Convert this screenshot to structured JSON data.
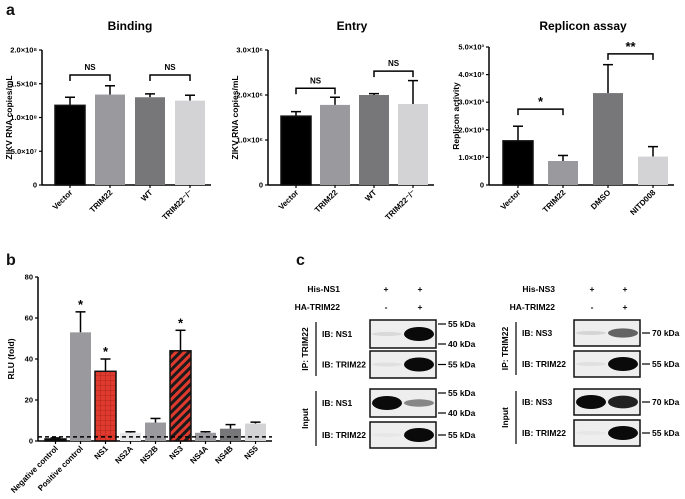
{
  "panels": {
    "a": "a",
    "b": "b",
    "c": "c"
  },
  "chart_data": [
    {
      "type": "bar",
      "title": "Binding",
      "ylabel": "ZIKV RNA copies/mL",
      "categories": [
        "Vector",
        "TRIM22",
        "WT",
        "TRIM22⁻/⁻"
      ],
      "values": [
        118000000,
        134000000,
        130000000,
        125000000
      ],
      "errors": [
        12000000,
        13000000,
        5000000,
        8000000
      ],
      "colors": [
        "#000000",
        "#9a9a9e",
        "#777779",
        "#d3d3d5"
      ],
      "ylim": [
        0,
        200000000
      ],
      "yticks": [
        0,
        50000000,
        100000000,
        150000000,
        200000000
      ],
      "yticklabels": [
        "0",
        "5.0×10⁷",
        "1.0×10⁸",
        "1.5×10⁸",
        "2.0×10⁸"
      ],
      "brackets": [
        {
          "from": 0,
          "to": 1,
          "label": "NS",
          "level": 163000000.0
        },
        {
          "from": 2,
          "to": 3,
          "label": "NS",
          "level": 163000000
        }
      ]
    },
    {
      "type": "bar",
      "title": "Entry",
      "ylabel": "ZIKV RNA copies/mL",
      "categories": [
        "Vector",
        "TRIM22",
        "WT",
        "TRIM22⁻/⁻"
      ],
      "values": [
        1530000,
        1780000,
        2000000,
        1800000
      ],
      "errors": [
        100000,
        170000,
        30000,
        520000
      ],
      "colors": [
        "#000000",
        "#9a9a9e",
        "#777779",
        "#d3d3d5"
      ],
      "ylim": [
        0,
        3000000
      ],
      "yticks": [
        0,
        1000000,
        2000000,
        3000000
      ],
      "yticklabels": [
        "0",
        "1.0×10⁶",
        "2.0×10⁶",
        "3.0×10⁶"
      ],
      "brackets": [
        {
          "from": 0,
          "to": 1,
          "label": "NS",
          "level": 2150000
        },
        {
          "from": 2,
          "to": 3,
          "label": "NS",
          "level": 2530000
        }
      ]
    },
    {
      "type": "bar",
      "title": "Replicon assay",
      "ylabel": "Replicon activity",
      "categories": [
        "Vector",
        "TRIM22",
        "DMSO",
        "NITD008"
      ],
      "values": [
        1600,
        870,
        3330,
        1030
      ],
      "errors": [
        530,
        200,
        1030,
        360
      ],
      "colors": [
        "#000000",
        "#9a9a9e",
        "#777779",
        "#d3d3d5"
      ],
      "ylim": [
        0,
        5000
      ],
      "yticks": [
        0,
        1000,
        2000,
        3000,
        4000,
        5000
      ],
      "yticklabels": [
        "0",
        "1.0×10³",
        "2.0×10³",
        "3.0×10³",
        "4.0×10³",
        "5.0×10³"
      ],
      "brackets": [
        {
          "from": 0,
          "to": 1,
          "label": "*",
          "level": 2750.0
        },
        {
          "from": 2,
          "to": 3,
          "label": "**",
          "level": 4750
        }
      ]
    },
    {
      "type": "bar",
      "title": "",
      "ylabel": "RLU (fold)",
      "categories": [
        "Negative control",
        "Positive control",
        "NS1",
        "NS2A",
        "NS2B",
        "NS3",
        "NS4A",
        "NS4B",
        "NS5"
      ],
      "values": [
        1,
        53,
        34,
        4,
        9,
        44,
        4,
        6,
        8.5
      ],
      "errors": [
        0.5,
        10,
        6,
        0.5,
        2,
        10,
        0.5,
        2,
        0.7
      ],
      "colors": [
        "#000000",
        "#9a9a9e",
        "#e03a2f",
        "#e6e6e8",
        "#9a9a9e",
        "#e03a2f",
        "#9a9a9e",
        "#777779",
        "#d3d3d5"
      ],
      "patterns": [
        "solid",
        "solid",
        "grid",
        "solid",
        "solid",
        "stripes",
        "solid",
        "solid",
        "solid"
      ],
      "significant": [
        false,
        true,
        true,
        false,
        false,
        true,
        false,
        false,
        false
      ],
      "threshold": 2,
      "ylim": [
        0,
        80
      ],
      "yticks": [
        0,
        20,
        40,
        60,
        80
      ],
      "yticklabels": [
        "0",
        "20",
        "40",
        "60",
        "80"
      ]
    }
  ],
  "western_blots": [
    {
      "rows": [
        {
          "label": "His-NS1",
          "lanes": [
            "+",
            "+"
          ]
        },
        {
          "label": "HA-TRIM22",
          "lanes": [
            "-",
            "+"
          ]
        }
      ],
      "groups": [
        {
          "label": "IP: TRIM22",
          "blots": [
            {
              "label": "IB: NS1",
              "markers": [
                "55 kDa",
                "40 kDa"
              ],
              "bands": [
                0.08,
                1.0
              ]
            },
            {
              "label": "IB: TRIM22",
              "markers": [
                "55 kDa"
              ],
              "bands": [
                0.05,
                1.0
              ]
            }
          ]
        },
        {
          "label": "Input",
          "blots": [
            {
              "label": "IB: NS1",
              "markers": [
                "55 kDa",
                "40 kDa"
              ],
              "bands": [
                1.0,
                0.45
              ]
            },
            {
              "label": "IB: TRIM22",
              "markers": [
                "55 kDa"
              ],
              "bands": [
                0.02,
                1.0
              ]
            }
          ]
        }
      ]
    },
    {
      "rows": [
        {
          "label": "His-NS3",
          "lanes": [
            "+",
            "+"
          ]
        },
        {
          "label": "HA-TRIM22",
          "lanes": [
            "-",
            "+"
          ]
        }
      ],
      "groups": [
        {
          "label": "IP: TRIM22",
          "blots": [
            {
              "label": "IB: NS3",
              "markers": [
                "70 kDa"
              ],
              "bands": [
                0.1,
                0.6
              ]
            },
            {
              "label": "IB: TRIM22",
              "markers": [
                "55 kDa"
              ],
              "bands": [
                0.05,
                1.0
              ]
            }
          ]
        },
        {
          "label": "Input",
          "blots": [
            {
              "label": "IB: NS3",
              "markers": [
                "70 kDa"
              ],
              "bands": [
                1.0,
                0.9
              ]
            },
            {
              "label": "IB: TRIM22",
              "markers": [
                "55 kDa"
              ],
              "bands": [
                0.02,
                1.0
              ]
            }
          ]
        }
      ]
    }
  ]
}
